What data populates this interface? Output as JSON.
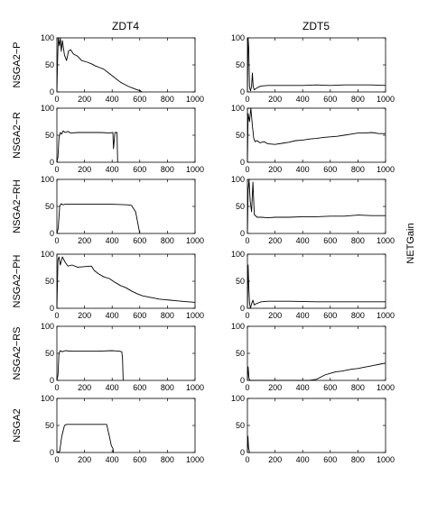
{
  "figure": {
    "column_titles": [
      "ZDT4",
      "ZDT5"
    ],
    "right_label": "NETGain",
    "row_labels": [
      "NSGA2−P",
      "NSGA2−R",
      "NSGA2−RH",
      "NSGA2−PH",
      "NSGA2−RS",
      "NSGA2"
    ]
  },
  "chart_data": {
    "type": "line",
    "grid": false,
    "xlim": [
      0,
      1000
    ],
    "ylim": [
      0,
      100
    ],
    "xticks": [
      "0",
      "200",
      "400",
      "600",
      "800",
      "1000"
    ],
    "yticks": [
      "0",
      "50",
      "100"
    ],
    "panels": [
      {
        "row": "NSGA2−P",
        "col": "ZDT4",
        "points": [
          [
            0,
            0
          ],
          [
            5,
            60
          ],
          [
            10,
            100
          ],
          [
            18,
            85
          ],
          [
            25,
            100
          ],
          [
            32,
            75
          ],
          [
            40,
            95
          ],
          [
            55,
            68
          ],
          [
            70,
            58
          ],
          [
            85,
            76
          ],
          [
            100,
            78
          ],
          [
            120,
            70
          ],
          [
            150,
            66
          ],
          [
            180,
            58
          ],
          [
            220,
            55
          ],
          [
            250,
            52
          ],
          [
            280,
            48
          ],
          [
            310,
            45
          ],
          [
            340,
            42
          ],
          [
            370,
            36
          ],
          [
            400,
            30
          ],
          [
            430,
            24
          ],
          [
            460,
            18
          ],
          [
            490,
            14
          ],
          [
            520,
            10
          ],
          [
            550,
            7
          ],
          [
            580,
            4
          ],
          [
            605,
            2
          ],
          [
            615,
            0
          ]
        ]
      },
      {
        "row": "NSGA2−P",
        "col": "ZDT5",
        "points": [
          [
            0,
            0
          ],
          [
            5,
            100
          ],
          [
            10,
            80
          ],
          [
            15,
            10
          ],
          [
            22,
            2
          ],
          [
            30,
            10
          ],
          [
            36,
            35
          ],
          [
            42,
            10
          ],
          [
            50,
            4
          ],
          [
            60,
            6
          ],
          [
            80,
            9
          ],
          [
            100,
            11
          ],
          [
            150,
            12
          ],
          [
            250,
            12
          ],
          [
            400,
            12
          ],
          [
            500,
            13
          ],
          [
            600,
            12
          ],
          [
            700,
            13
          ],
          [
            800,
            13
          ],
          [
            900,
            13
          ],
          [
            1000,
            12
          ]
        ]
      },
      {
        "row": "NSGA2−R",
        "col": "ZDT4",
        "points": [
          [
            0,
            0
          ],
          [
            8,
            10
          ],
          [
            15,
            45
          ],
          [
            25,
            55
          ],
          [
            35,
            52
          ],
          [
            45,
            58
          ],
          [
            60,
            55
          ],
          [
            80,
            57
          ],
          [
            100,
            54
          ],
          [
            150,
            55
          ],
          [
            200,
            55
          ],
          [
            260,
            55
          ],
          [
            320,
            55
          ],
          [
            380,
            54
          ],
          [
            405,
            55
          ],
          [
            410,
            25
          ],
          [
            420,
            55
          ],
          [
            435,
            55
          ],
          [
            440,
            0
          ]
        ]
      },
      {
        "row": "NSGA2−R",
        "col": "ZDT5",
        "points": [
          [
            0,
            0
          ],
          [
            5,
            90
          ],
          [
            15,
            75
          ],
          [
            25,
            100
          ],
          [
            35,
            70
          ],
          [
            45,
            45
          ],
          [
            55,
            38
          ],
          [
            70,
            40
          ],
          [
            90,
            36
          ],
          [
            120,
            38
          ],
          [
            150,
            34
          ],
          [
            200,
            33
          ],
          [
            250,
            35
          ],
          [
            300,
            37
          ],
          [
            350,
            40
          ],
          [
            400,
            41
          ],
          [
            450,
            43
          ],
          [
            500,
            44
          ],
          [
            550,
            46
          ],
          [
            600,
            47
          ],
          [
            650,
            48
          ],
          [
            700,
            50
          ],
          [
            750,
            52
          ],
          [
            800,
            54
          ],
          [
            850,
            54
          ],
          [
            900,
            55
          ],
          [
            950,
            53
          ],
          [
            1000,
            53
          ]
        ]
      },
      {
        "row": "NSGA2−RH",
        "col": "ZDT4",
        "points": [
          [
            0,
            0
          ],
          [
            10,
            10
          ],
          [
            20,
            50
          ],
          [
            30,
            55
          ],
          [
            45,
            53
          ],
          [
            60,
            54
          ],
          [
            100,
            54
          ],
          [
            200,
            54
          ],
          [
            300,
            54
          ],
          [
            400,
            54
          ],
          [
            510,
            53
          ],
          [
            540,
            52
          ],
          [
            570,
            40
          ],
          [
            600,
            0
          ]
        ]
      },
      {
        "row": "NSGA2−RH",
        "col": "ZDT5",
        "points": [
          [
            0,
            0
          ],
          [
            5,
            80
          ],
          [
            12,
            100
          ],
          [
            20,
            60
          ],
          [
            30,
            40
          ],
          [
            40,
            95
          ],
          [
            50,
            35
          ],
          [
            70,
            30
          ],
          [
            100,
            30
          ],
          [
            150,
            29
          ],
          [
            200,
            30
          ],
          [
            300,
            30
          ],
          [
            400,
            31
          ],
          [
            500,
            31
          ],
          [
            600,
            32
          ],
          [
            700,
            32
          ],
          [
            800,
            34
          ],
          [
            900,
            33
          ],
          [
            1000,
            33
          ]
        ]
      },
      {
        "row": "NSGA2−PH",
        "col": "ZDT4",
        "points": [
          [
            0,
            0
          ],
          [
            8,
            90
          ],
          [
            15,
            95
          ],
          [
            25,
            80
          ],
          [
            40,
            95
          ],
          [
            60,
            85
          ],
          [
            80,
            78
          ],
          [
            110,
            80
          ],
          [
            150,
            76
          ],
          [
            200,
            77
          ],
          [
            250,
            78
          ],
          [
            270,
            70
          ],
          [
            300,
            64
          ],
          [
            340,
            58
          ],
          [
            380,
            55
          ],
          [
            420,
            48
          ],
          [
            460,
            42
          ],
          [
            500,
            38
          ],
          [
            540,
            32
          ],
          [
            580,
            27
          ],
          [
            620,
            23
          ],
          [
            660,
            21
          ],
          [
            700,
            19
          ],
          [
            740,
            17
          ],
          [
            780,
            16
          ],
          [
            820,
            15
          ],
          [
            860,
            14
          ],
          [
            900,
            13
          ],
          [
            950,
            12
          ],
          [
            1000,
            11
          ]
        ]
      },
      {
        "row": "NSGA2−PH",
        "col": "ZDT5",
        "points": [
          [
            0,
            0
          ],
          [
            5,
            80
          ],
          [
            10,
            40
          ],
          [
            15,
            10
          ],
          [
            22,
            0
          ],
          [
            30,
            8
          ],
          [
            40,
            15
          ],
          [
            50,
            6
          ],
          [
            60,
            8
          ],
          [
            80,
            10
          ],
          [
            100,
            12
          ],
          [
            150,
            13
          ],
          [
            300,
            13
          ],
          [
            500,
            12
          ],
          [
            700,
            12
          ],
          [
            1000,
            12
          ]
        ]
      },
      {
        "row": "NSGA2−RS",
        "col": "ZDT4",
        "points": [
          [
            0,
            0
          ],
          [
            8,
            10
          ],
          [
            15,
            50
          ],
          [
            25,
            55
          ],
          [
            40,
            53
          ],
          [
            60,
            55
          ],
          [
            100,
            54
          ],
          [
            200,
            54
          ],
          [
            300,
            54
          ],
          [
            400,
            55
          ],
          [
            450,
            54
          ],
          [
            470,
            53
          ],
          [
            475,
            40
          ],
          [
            480,
            0
          ]
        ]
      },
      {
        "row": "NSGA2−RS",
        "col": "ZDT5",
        "points": [
          [
            0,
            0
          ],
          [
            5,
            25
          ],
          [
            12,
            3
          ],
          [
            20,
            0
          ],
          [
            100,
            0
          ],
          [
            200,
            0
          ],
          [
            300,
            0
          ],
          [
            400,
            0
          ],
          [
            450,
            0
          ],
          [
            500,
            2
          ],
          [
            530,
            6
          ],
          [
            560,
            10
          ],
          [
            600,
            13
          ],
          [
            640,
            16
          ],
          [
            680,
            17
          ],
          [
            720,
            19
          ],
          [
            760,
            21
          ],
          [
            800,
            22
          ],
          [
            840,
            24
          ],
          [
            880,
            26
          ],
          [
            920,
            28
          ],
          [
            960,
            30
          ],
          [
            1000,
            32
          ]
        ]
      },
      {
        "row": "NSGA2",
        "col": "ZDT4",
        "points": [
          [
            0,
            0
          ],
          [
            20,
            2
          ],
          [
            35,
            30
          ],
          [
            45,
            40
          ],
          [
            55,
            50
          ],
          [
            70,
            52
          ],
          [
            100,
            52
          ],
          [
            200,
            52
          ],
          [
            300,
            52
          ],
          [
            360,
            52
          ],
          [
            380,
            30
          ],
          [
            395,
            12
          ],
          [
            405,
            8
          ],
          [
            410,
            0
          ]
        ]
      },
      {
        "row": "NSGA2",
        "col": "ZDT5",
        "points": [
          [
            0,
            0
          ],
          [
            4,
            30
          ],
          [
            8,
            10
          ],
          [
            15,
            0
          ]
        ]
      }
    ]
  }
}
